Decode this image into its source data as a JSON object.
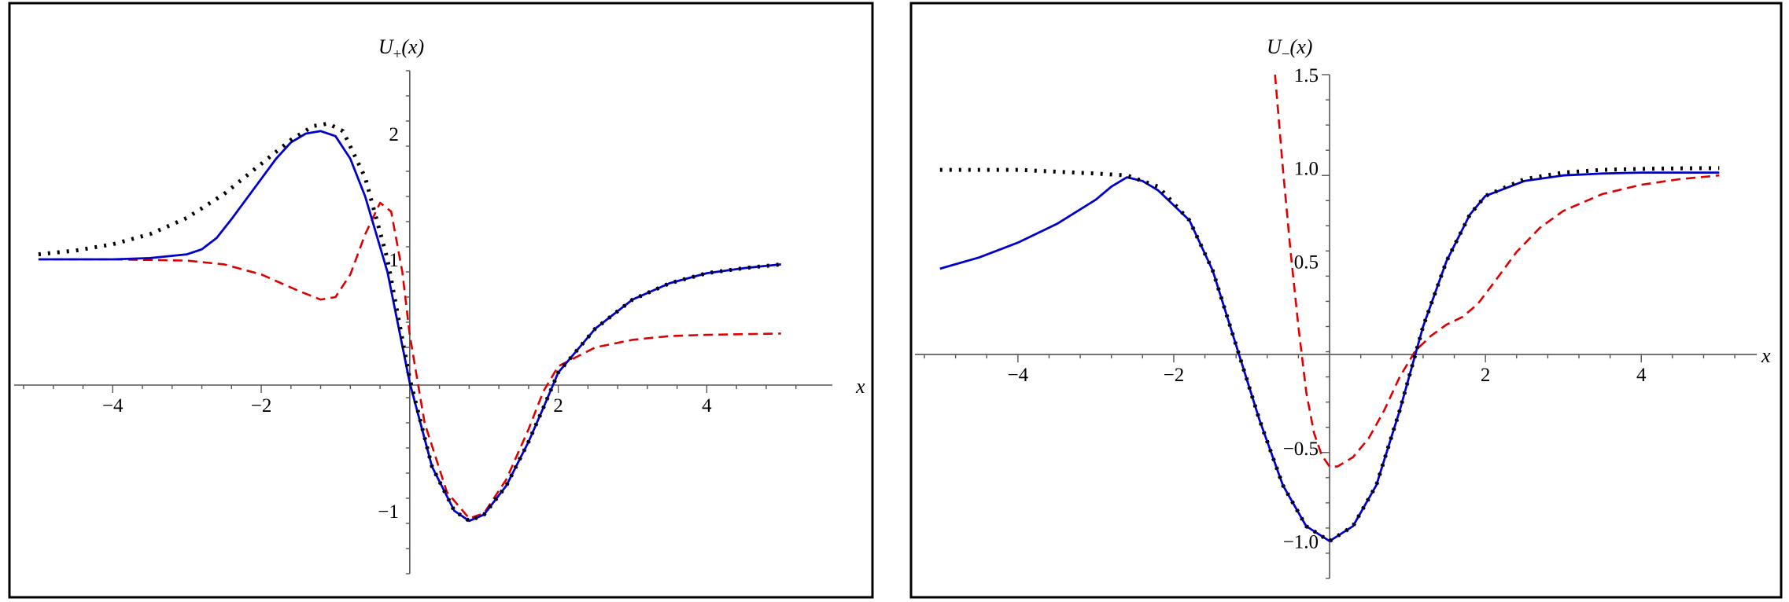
{
  "chart_data": [
    {
      "type": "line",
      "title": "",
      "xlabel": "x",
      "ylabel_main": "U",
      "ylabel_sub": "+",
      "ylabel_tail": "(x)",
      "xlim": [
        -5.2,
        5.5
      ],
      "ylim": [
        -1.5,
        2.5
      ],
      "xticks": [
        -4,
        -2,
        2,
        4
      ],
      "xtick_labels": [
        "−4",
        "−2",
        "2",
        "4"
      ],
      "yticks": [
        -1,
        1,
        2
      ],
      "ytick_labels": [
        "−1",
        "1",
        "2"
      ],
      "grid": false,
      "series": [
        {
          "style": "dotted",
          "color": "#000000",
          "x": [
            -5.0,
            -4.5,
            -4.0,
            -3.5,
            -3.0,
            -2.5,
            -2.0,
            -1.6,
            -1.3,
            -1.1,
            -0.9,
            -0.6,
            -0.3,
            0.0,
            0.3,
            0.6,
            0.8,
            1.0,
            1.3,
            1.6,
            1.8,
            2.0,
            2.5,
            3.0,
            3.5,
            4.0,
            4.5,
            5.0
          ],
          "y": [
            1.04,
            1.07,
            1.12,
            1.2,
            1.33,
            1.52,
            1.76,
            1.95,
            2.06,
            2.08,
            2.02,
            1.65,
            1.0,
            0.05,
            -0.65,
            -1.0,
            -1.08,
            -1.03,
            -0.8,
            -0.45,
            -0.18,
            0.1,
            0.45,
            0.68,
            0.81,
            0.89,
            0.93,
            0.96
          ]
        },
        {
          "style": "solid",
          "color": "#0000cc",
          "x": [
            -5.0,
            -4.0,
            -3.5,
            -3.0,
            -2.8,
            -2.6,
            -2.4,
            -2.2,
            -2.0,
            -1.8,
            -1.6,
            -1.4,
            -1.2,
            -1.0,
            -0.8,
            -0.6,
            -0.3,
            0.0,
            0.3,
            0.6,
            0.8,
            1.0,
            1.3,
            1.6,
            1.8,
            2.0,
            2.5,
            3.0,
            3.5,
            4.0,
            4.5,
            5.0
          ],
          "y": [
            1.0,
            1.0,
            1.01,
            1.04,
            1.08,
            1.17,
            1.32,
            1.48,
            1.64,
            1.8,
            1.93,
            2.0,
            2.02,
            1.98,
            1.8,
            1.5,
            0.9,
            0.02,
            -0.65,
            -1.0,
            -1.08,
            -1.03,
            -0.8,
            -0.45,
            -0.18,
            0.1,
            0.45,
            0.68,
            0.81,
            0.89,
            0.93,
            0.96
          ]
        },
        {
          "style": "dashed",
          "color": "#dd0000",
          "x": [
            -5.0,
            -4.0,
            -3.0,
            -2.5,
            -2.0,
            -1.5,
            -1.2,
            -1.0,
            -0.8,
            -0.6,
            -0.4,
            -0.25,
            -0.1,
            0.0,
            0.2,
            0.5,
            0.8,
            1.0,
            1.3,
            1.6,
            1.8,
            2.0,
            2.5,
            3.0,
            3.5,
            4.0,
            5.0
          ],
          "y": [
            1.0,
            1.0,
            0.99,
            0.96,
            0.88,
            0.75,
            0.68,
            0.7,
            0.88,
            1.2,
            1.45,
            1.38,
            0.9,
            0.4,
            -0.3,
            -0.85,
            -1.06,
            -1.02,
            -0.75,
            -0.35,
            -0.05,
            0.15,
            0.3,
            0.36,
            0.39,
            0.4,
            0.41
          ]
        }
      ]
    },
    {
      "type": "line",
      "title": "",
      "xlabel": "x",
      "ylabel_main": "U",
      "ylabel_sub": "−",
      "ylabel_tail": "(x)",
      "xlim": [
        -5.2,
        5.3
      ],
      "ylim": [
        -1.2,
        1.5
      ],
      "xticks": [
        -4,
        -2,
        2,
        4
      ],
      "xtick_labels": [
        "−4",
        "−2",
        "2",
        "4"
      ],
      "yticks": [
        -1.0,
        -0.5,
        0.5,
        1.0,
        1.5
      ],
      "ytick_labels": [
        "−1.0",
        "−0.5",
        "0.5",
        "1.0",
        "1.5"
      ],
      "grid": false,
      "series": [
        {
          "style": "dotted",
          "color": "#000000",
          "x": [
            -5.0,
            -4.5,
            -4.0,
            -3.5,
            -3.0,
            -2.6,
            -2.2,
            -1.8,
            -1.5,
            -1.2,
            -0.9,
            -0.6,
            -0.3,
            0.0,
            0.3,
            0.6,
            0.9,
            1.2,
            1.5,
            1.8,
            2.0,
            2.5,
            3.0,
            3.5,
            4.0,
            4.5,
            5.0
          ],
          "y": [
            0.99,
            0.99,
            0.99,
            0.98,
            0.97,
            0.96,
            0.9,
            0.72,
            0.45,
            0.05,
            -0.35,
            -0.7,
            -0.92,
            -1.0,
            -0.92,
            -0.7,
            -0.3,
            0.15,
            0.5,
            0.75,
            0.85,
            0.94,
            0.975,
            0.99,
            0.995,
            0.998,
            0.999
          ]
        },
        {
          "style": "solid",
          "color": "#0000cc",
          "x": [
            -5.0,
            -4.5,
            -4.0,
            -3.5,
            -3.0,
            -2.8,
            -2.6,
            -2.4,
            -2.2,
            -1.8,
            -1.5,
            -1.2,
            -0.9,
            -0.6,
            -0.3,
            0.0,
            0.3,
            0.6,
            0.9,
            1.2,
            1.5,
            1.8,
            2.0,
            2.5,
            3.0,
            3.5,
            4.0,
            4.5,
            5.0
          ],
          "y": [
            0.46,
            0.52,
            0.6,
            0.7,
            0.83,
            0.9,
            0.95,
            0.93,
            0.88,
            0.72,
            0.45,
            0.05,
            -0.35,
            -0.7,
            -0.92,
            -1.0,
            -0.92,
            -0.7,
            -0.3,
            0.15,
            0.5,
            0.75,
            0.85,
            0.93,
            0.96,
            0.97,
            0.975,
            0.975,
            0.975
          ]
        },
        {
          "style": "dashed",
          "color": "#dd0000",
          "x": [
            -0.7,
            -0.6,
            -0.5,
            -0.4,
            -0.3,
            -0.2,
            -0.1,
            0.0,
            0.1,
            0.3,
            0.5,
            0.7,
            0.9,
            1.1,
            1.3,
            1.5,
            1.7,
            1.9,
            2.1,
            2.4,
            2.7,
            3.0,
            3.5,
            4.0,
            4.5,
            5.0
          ],
          "y": [
            1.5,
            1.0,
            0.55,
            0.15,
            -0.2,
            -0.42,
            -0.54,
            -0.6,
            -0.6,
            -0.55,
            -0.45,
            -0.3,
            -0.12,
            0.02,
            0.1,
            0.16,
            0.2,
            0.27,
            0.38,
            0.55,
            0.68,
            0.77,
            0.86,
            0.91,
            0.94,
            0.96
          ]
        }
      ]
    }
  ]
}
